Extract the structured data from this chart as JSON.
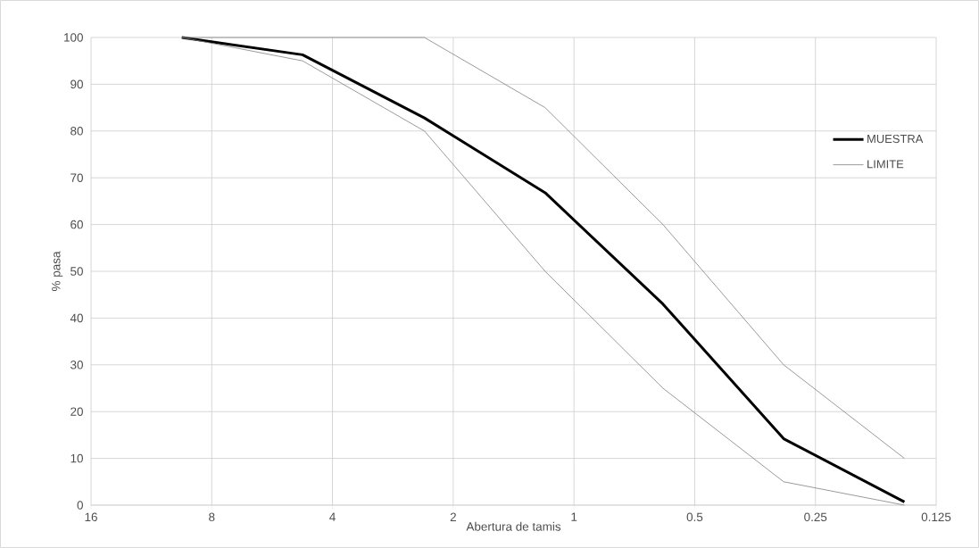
{
  "chart_data": {
    "type": "line",
    "xlabel": "Abertura de tamis",
    "ylabel": "% pasa",
    "log": "x",
    "xlim": [
      16,
      0.125
    ],
    "xticks": [
      16,
      8,
      4,
      2,
      1,
      0.5,
      0.25,
      0.125
    ],
    "ylim": [
      0,
      100
    ],
    "yticks": [
      0,
      10,
      20,
      30,
      40,
      50,
      60,
      70,
      80,
      90,
      100
    ],
    "grid": true,
    "legend": "top right",
    "marker": "none",
    "line_style": "solid",
    "x": [
      9.5,
      4.75,
      2.36,
      1.18,
      0.6,
      0.3,
      0.15
    ],
    "series": [
      {
        "name": "MUESTRA",
        "color": "#000000",
        "values": [
          100,
          96.3,
          82.8,
          66.8,
          43,
          14.2,
          0.7
        ]
      },
      {
        "name": "LIMITE",
        "color": "#808080",
        "values": [
          100,
          100,
          100,
          85,
          60,
          30,
          10
        ]
      },
      {
        "color": "#808080",
        "values": [
          100,
          95,
          80,
          50,
          25,
          5,
          0
        ]
      }
    ]
  }
}
